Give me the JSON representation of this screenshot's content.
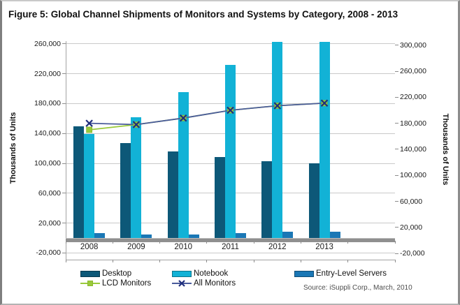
{
  "figure": {
    "title": "Figure 5: Global Channel Shipments of Monitors and Systems by Category, 2008 - 2013"
  },
  "chart_data": {
    "type": "bar",
    "subtype": "combo-bar-line-dual-axis",
    "title": "Figure 5: Global Channel Shipments of Monitors and Systems by Category, 2008 - 2013",
    "categories": [
      "2008",
      "2009",
      "2010",
      "2011",
      "2012",
      "2013"
    ],
    "bar_series": [
      {
        "name": "Desktop",
        "axis": "left",
        "color": "#0d5878",
        "values": [
          150000,
          127000,
          116000,
          108000,
          103000,
          100000
        ]
      },
      {
        "name": "Notebook",
        "axis": "left",
        "color": "#12b2d6",
        "values": [
          139000,
          162000,
          195000,
          232000,
          263000,
          263000
        ]
      },
      {
        "name": "Entry-Level Servers",
        "axis": "left",
        "color": "#1a77b5",
        "values": [
          7000,
          5000,
          5000,
          7000,
          8000,
          8000
        ]
      }
    ],
    "line_series": [
      {
        "name": "LCD Monitors",
        "axis": "right",
        "color": "#9aca3b",
        "marker": "square",
        "marker_color": "#8ab82f",
        "values": [
          170000,
          178000,
          188000,
          200000,
          207000,
          211000
        ]
      },
      {
        "name": "All Monitors",
        "axis": "right",
        "color": "#4a5b9b",
        "marker": "x",
        "marker_color": "#1f2e7d",
        "values": [
          180000,
          178000,
          188000,
          200000,
          207000,
          211000
        ]
      }
    ],
    "left_axis": {
      "label": "Thousands of Units",
      "min": -20000,
      "max": 260000,
      "step": 40000
    },
    "right_axis": {
      "label": "Thousands of Units",
      "min": -20000,
      "max": 300000,
      "step": 40000
    },
    "grid": true,
    "legend_position": "bottom",
    "source": "Source: iSuppli Corp., March, 2010",
    "colors": {
      "gridline": "#c9c9c9",
      "zero_band": "#8f8f8f",
      "text": "#1a1a1a"
    }
  }
}
